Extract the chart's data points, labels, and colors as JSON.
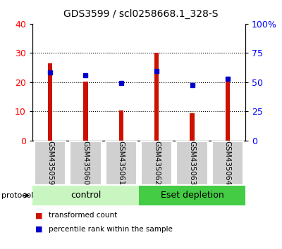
{
  "title": "GDS3599 / scl0258668.1_328-S",
  "samples": [
    "GSM435059",
    "GSM435060",
    "GSM435061",
    "GSM435062",
    "GSM435063",
    "GSM435064"
  ],
  "transformed_counts": [
    26.5,
    20.3,
    10.3,
    30.0,
    9.3,
    21.0
  ],
  "percentile_ranks": [
    58.5,
    56.0,
    49.5,
    59.5,
    47.5,
    53.0
  ],
  "bar_color": "#cc1100",
  "dot_color": "#0000cc",
  "left_ylim": [
    0,
    40
  ],
  "right_ylim": [
    0,
    100
  ],
  "left_yticks": [
    0,
    10,
    20,
    30,
    40
  ],
  "right_yticks": [
    0,
    25,
    50,
    75,
    100
  ],
  "right_yticklabels": [
    "0",
    "25",
    "50",
    "75",
    "100%"
  ],
  "grid_values": [
    10,
    20,
    30
  ],
  "bar_width": 0.12,
  "title_fontsize": 10,
  "protocol_label": "protocol",
  "control_color": "#c8f5c0",
  "eset_color": "#44cc44",
  "legend_items": [
    {
      "color": "#cc1100",
      "label": "transformed count"
    },
    {
      "color": "#0000cc",
      "label": "percentile rank within the sample"
    }
  ],
  "background_color": "#ffffff",
  "label_box_color": "#d0d0d0",
  "label_area_bg": "#c0c0c0"
}
